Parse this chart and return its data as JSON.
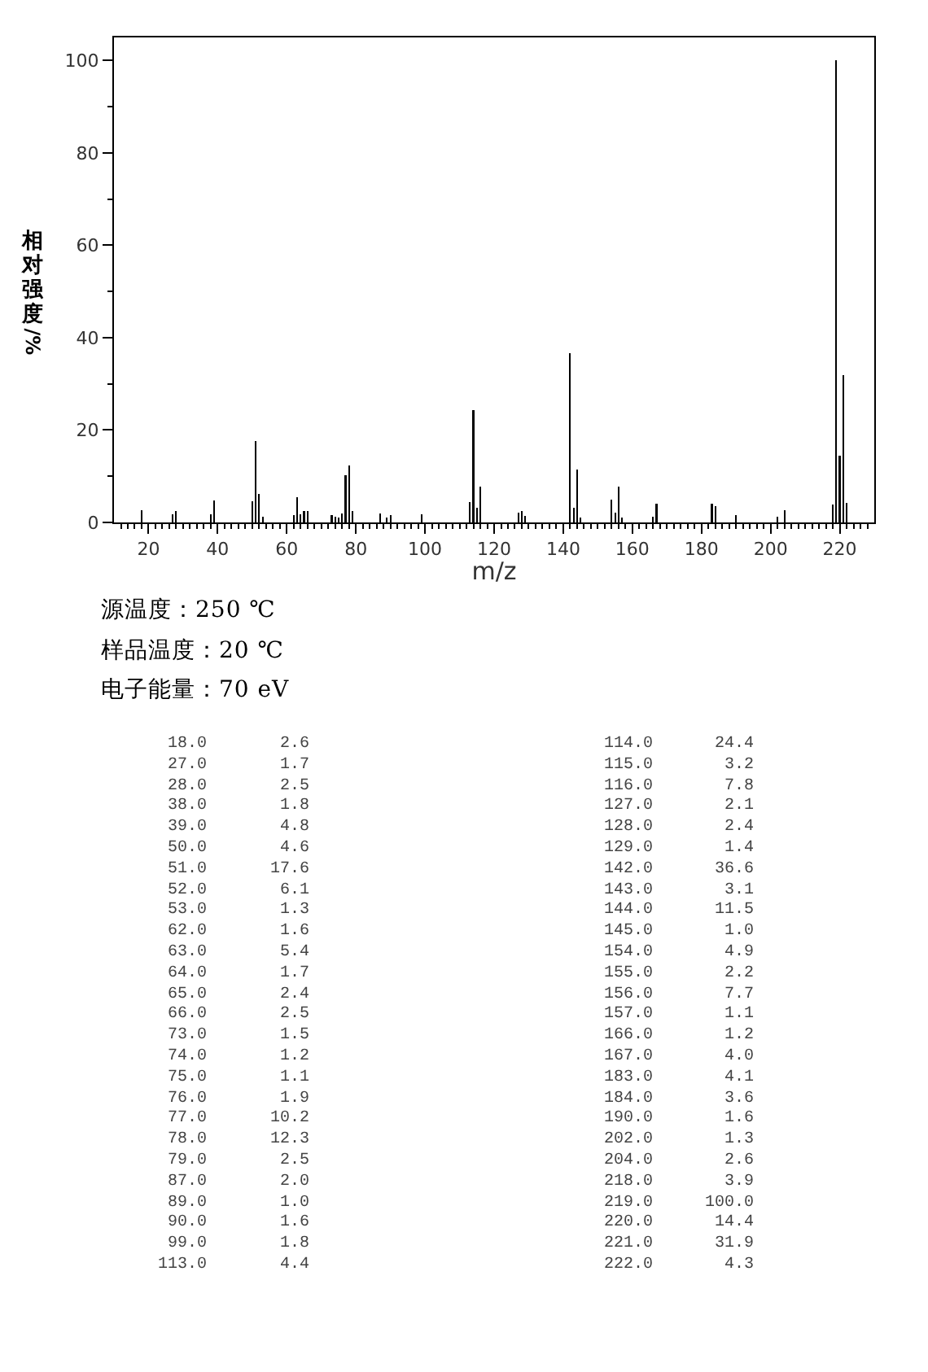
{
  "chart_data": [
    {
      "type": "bar",
      "xlabel": "m/z",
      "ylabel": "相对强度/%",
      "annotations": [
        "源温度：250 ℃",
        "样品温度：20 ℃",
        "电子能量：70 eV"
      ],
      "x": [
        18,
        27,
        28,
        38,
        39,
        50,
        51,
        52,
        53,
        62,
        63,
        64,
        65,
        66,
        73,
        74,
        75,
        76,
        77,
        78,
        79,
        87,
        89,
        90,
        99,
        113,
        114,
        115,
        116,
        127,
        128,
        129,
        142,
        143,
        144,
        145,
        154,
        155,
        156,
        157,
        166,
        167,
        183,
        184,
        190,
        202,
        204,
        218,
        219,
        220,
        221,
        222
      ],
      "values": [
        2.6,
        1.7,
        2.5,
        1.8,
        4.8,
        4.6,
        17.6,
        6.1,
        1.3,
        1.6,
        5.4,
        1.7,
        2.4,
        2.5,
        1.5,
        1.2,
        1.1,
        1.9,
        10.2,
        12.3,
        2.5,
        2.0,
        1.0,
        1.6,
        1.8,
        4.4,
        24.4,
        3.2,
        7.8,
        2.1,
        2.4,
        1.4,
        36.6,
        3.1,
        11.5,
        1.0,
        4.9,
        2.2,
        7.7,
        1.1,
        1.2,
        4.0,
        4.1,
        3.6,
        1.6,
        1.3,
        2.6,
        3.9,
        100.0,
        14.4,
        31.9,
        4.3
      ],
      "color": "#000000",
      "xlim": [
        10,
        230
      ],
      "ylim": [
        0,
        105
      ],
      "xticks": [
        {
          "value": 12,
          "label": null
        },
        {
          "value": 14,
          "label": null
        },
        {
          "value": 16,
          "label": null
        },
        {
          "value": 18,
          "label": null
        },
        20,
        {
          "value": 22,
          "label": null
        },
        {
          "value": 24,
          "label": null
        },
        {
          "value": 26,
          "label": null
        },
        {
          "value": 28,
          "label": null
        },
        {
          "value": 30,
          "label": null
        },
        {
          "value": 32,
          "label": null
        },
        {
          "value": 34,
          "label": null
        },
        {
          "value": 36,
          "label": null
        },
        {
          "value": 38,
          "label": null
        },
        40,
        {
          "value": 42,
          "label": null
        },
        {
          "value": 44,
          "label": null
        },
        {
          "value": 46,
          "label": null
        },
        {
          "value": 48,
          "label": null
        },
        {
          "value": 50,
          "label": null
        },
        {
          "value": 52,
          "label": null
        },
        {
          "value": 54,
          "label": null
        },
        {
          "value": 56,
          "label": null
        },
        {
          "value": 58,
          "label": null
        },
        60,
        {
          "value": 62,
          "label": null
        },
        {
          "value": 64,
          "label": null
        },
        {
          "value": 66,
          "label": null
        },
        {
          "value": 68,
          "label": null
        },
        {
          "value": 70,
          "label": null
        },
        {
          "value": 72,
          "label": null
        },
        {
          "value": 74,
          "label": null
        },
        {
          "value": 76,
          "label": null
        },
        {
          "value": 78,
          "label": null
        },
        80,
        {
          "value": 82,
          "label": null
        },
        {
          "value": 84,
          "label": null
        },
        {
          "value": 86,
          "label": null
        },
        {
          "value": 88,
          "label": null
        },
        {
          "value": 90,
          "label": null
        },
        {
          "value": 92,
          "label": null
        },
        {
          "value": 94,
          "label": null
        },
        {
          "value": 96,
          "label": null
        },
        {
          "value": 98,
          "label": null
        },
        100,
        {
          "value": 102,
          "label": null
        },
        {
          "value": 104,
          "label": null
        },
        {
          "value": 106,
          "label": null
        },
        {
          "value": 108,
          "label": null
        },
        {
          "value": 110,
          "label": null
        },
        {
          "value": 112,
          "label": null
        },
        {
          "value": 114,
          "label": null
        },
        {
          "value": 116,
          "label": null
        },
        {
          "value": 118,
          "label": null
        },
        120,
        {
          "value": 122,
          "label": null
        },
        {
          "value": 124,
          "label": null
        },
        {
          "value": 126,
          "label": null
        },
        {
          "value": 128,
          "label": null
        },
        {
          "value": 130,
          "label": null
        },
        {
          "value": 132,
          "label": null
        },
        {
          "value": 134,
          "label": null
        },
        {
          "value": 136,
          "label": null
        },
        {
          "value": 138,
          "label": null
        },
        140,
        {
          "value": 142,
          "label": null
        },
        {
          "value": 144,
          "label": null
        },
        {
          "value": 146,
          "label": null
        },
        {
          "value": 148,
          "label": null
        },
        {
          "value": 150,
          "label": null
        },
        {
          "value": 152,
          "label": null
        },
        {
          "value": 154,
          "label": null
        },
        {
          "value": 156,
          "label": null
        },
        {
          "value": 158,
          "label": null
        },
        160,
        {
          "value": 162,
          "label": null
        },
        {
          "value": 164,
          "label": null
        },
        {
          "value": 166,
          "label": null
        },
        {
          "value": 168,
          "label": null
        },
        {
          "value": 170,
          "label": null
        },
        {
          "value": 172,
          "label": null
        },
        {
          "value": 174,
          "label": null
        },
        {
          "value": 176,
          "label": null
        },
        {
          "value": 178,
          "label": null
        },
        180,
        {
          "value": 182,
          "label": null
        },
        {
          "value": 184,
          "label": null
        },
        {
          "value": 186,
          "label": null
        },
        {
          "value": 188,
          "label": null
        },
        {
          "value": 190,
          "label": null
        },
        {
          "value": 192,
          "label": null
        },
        {
          "value": 194,
          "label": null
        },
        {
          "value": 196,
          "label": null
        },
        {
          "value": 198,
          "label": null
        },
        200,
        {
          "value": 202,
          "label": null
        },
        {
          "value": 204,
          "label": null
        },
        {
          "value": 206,
          "label": null
        },
        {
          "value": 208,
          "label": null
        },
        {
          "value": 210,
          "label": null
        },
        {
          "value": 212,
          "label": null
        },
        {
          "value": 214,
          "label": null
        },
        {
          "value": 216,
          "label": null
        },
        {
          "value": 218,
          "label": null
        },
        220,
        {
          "value": 222,
          "label": null
        },
        {
          "value": 224,
          "label": null
        },
        {
          "value": 226,
          "label": null
        },
        {
          "value": 228,
          "label": null
        }
      ],
      "yticks": [
        0,
        {
          "value": 10,
          "label": null
        },
        20,
        {
          "value": 30,
          "label": null
        },
        40,
        {
          "value": 50,
          "label": null
        },
        60,
        {
          "value": 70,
          "label": null
        },
        80,
        {
          "value": 90,
          "label": null
        },
        100
      ]
    },
    {
      "type": "other",
      "annotations": [
        "18.0",
        "2.6",
        "114.0",
        "24.4",
        "27.0",
        "1.7",
        "115.0",
        "3.2",
        "28.0",
        "2.5",
        "116.0",
        "7.8",
        "38.0",
        "1.8",
        "127.0",
        "2.1",
        "39.0",
        "4.8",
        "128.0",
        "2.4",
        "50.0",
        "4.6",
        "129.0",
        "1.4",
        "51.0",
        "17.6",
        "142.0",
        "36.6",
        "52.0",
        "6.1",
        "143.0",
        "3.1",
        "53.0",
        "1.3",
        "144.0",
        "11.5",
        "62.0",
        "1.6",
        "145.0",
        "1.0",
        "63.0",
        "5.4",
        "154.0",
        "4.9",
        "64.0",
        "1.7",
        "155.0",
        "2.2",
        "65.0",
        "2.4",
        "156.0",
        "7.7",
        "66.0",
        "2.5",
        "157.0",
        "1.1",
        "73.0",
        "1.5",
        "166.0",
        "1.2",
        "74.0",
        "1.2",
        "167.0",
        "4.0",
        "75.0",
        "1.1",
        "183.0",
        "4.1",
        "76.0",
        "1.9",
        "184.0",
        "3.6",
        "77.0",
        "10.2",
        "190.0",
        "1.6",
        "78.0",
        "12.3",
        "202.0",
        "1.3",
        "79.0",
        "2.5",
        "204.0",
        "2.6",
        "87.0",
        "2.0",
        "218.0",
        "3.9",
        "89.0",
        "1.0",
        "219.0",
        "100.0",
        "90.0",
        "1.6",
        "220.0",
        "14.4",
        "99.0",
        "1.8",
        "221.0",
        "31.9",
        "113.0",
        "4.4",
        "222.0",
        "4.3"
      ]
    }
  ]
}
